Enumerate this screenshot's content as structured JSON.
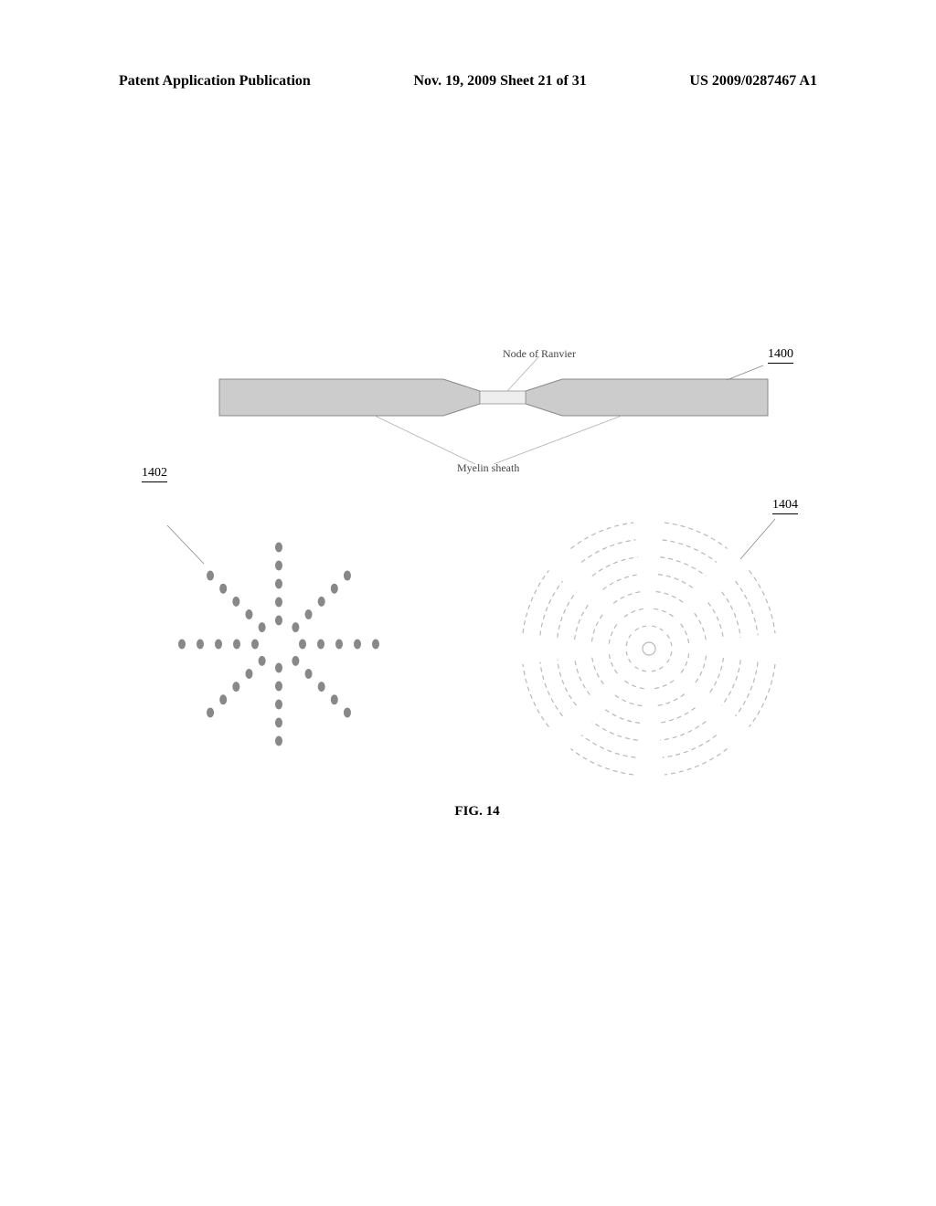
{
  "header": {
    "left": "Patent Application Publication",
    "center": "Nov. 19, 2009  Sheet 21 of 31",
    "right": "US 2009/0287467 A1"
  },
  "figure": {
    "label_node": "Node of Ranvier",
    "label_myelin": "Myelin sheath",
    "ref1400": "1400",
    "ref1402": "1402",
    "ref1404": "1404",
    "caption": "FIG. 14",
    "axon": {
      "sheath_fill": "#cccccc",
      "sheath_stroke": "#888888",
      "node_fill": "#eeeeee",
      "leader_stroke": "#b0b0b0",
      "ref_leader_stroke": "#888888"
    },
    "radial_dots": {
      "dot_fill": "#888888",
      "dot_rx": 4,
      "dot_ry": 5.5,
      "arms": 8,
      "dots_per_arm": 5,
      "inner_radius": 26,
      "spacing": 20,
      "leader_stroke": "#888888"
    },
    "concentric": {
      "stroke": "#b8b8b8",
      "stroke_width": 1.2,
      "rings": [
        25,
        44,
        63,
        82,
        101,
        120,
        139
      ],
      "segments": 8,
      "gap_deg": 14,
      "leader_stroke": "#888888"
    }
  }
}
